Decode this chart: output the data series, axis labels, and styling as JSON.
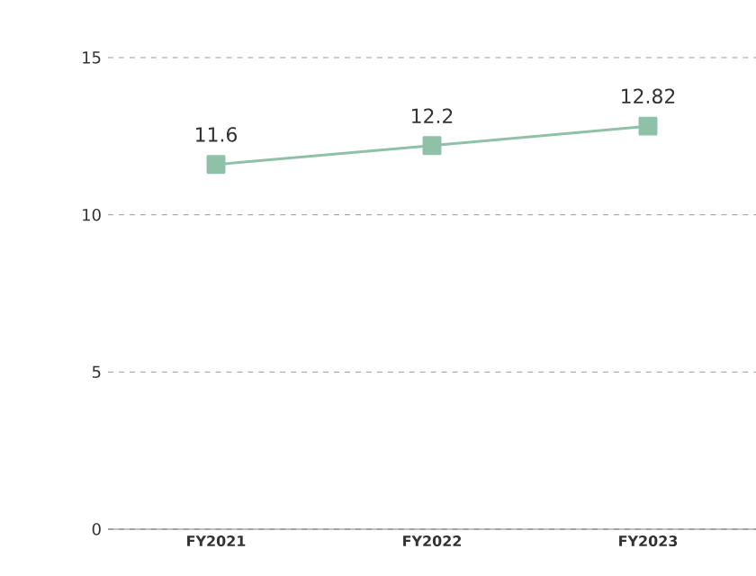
{
  "chart_data": {
    "type": "line",
    "categories": [
      "FY2021",
      "FY2022",
      "FY2023"
    ],
    "series": [
      {
        "color": "#8fc1a9",
        "values": [
          11.6,
          12.2,
          12.82
        ]
      }
    ],
    "ylim": [
      0,
      15
    ],
    "yticks": [
      0,
      5,
      10,
      15
    ],
    "grid": "y",
    "marker": "square",
    "line_style": "solid",
    "data_labels": true
  }
}
